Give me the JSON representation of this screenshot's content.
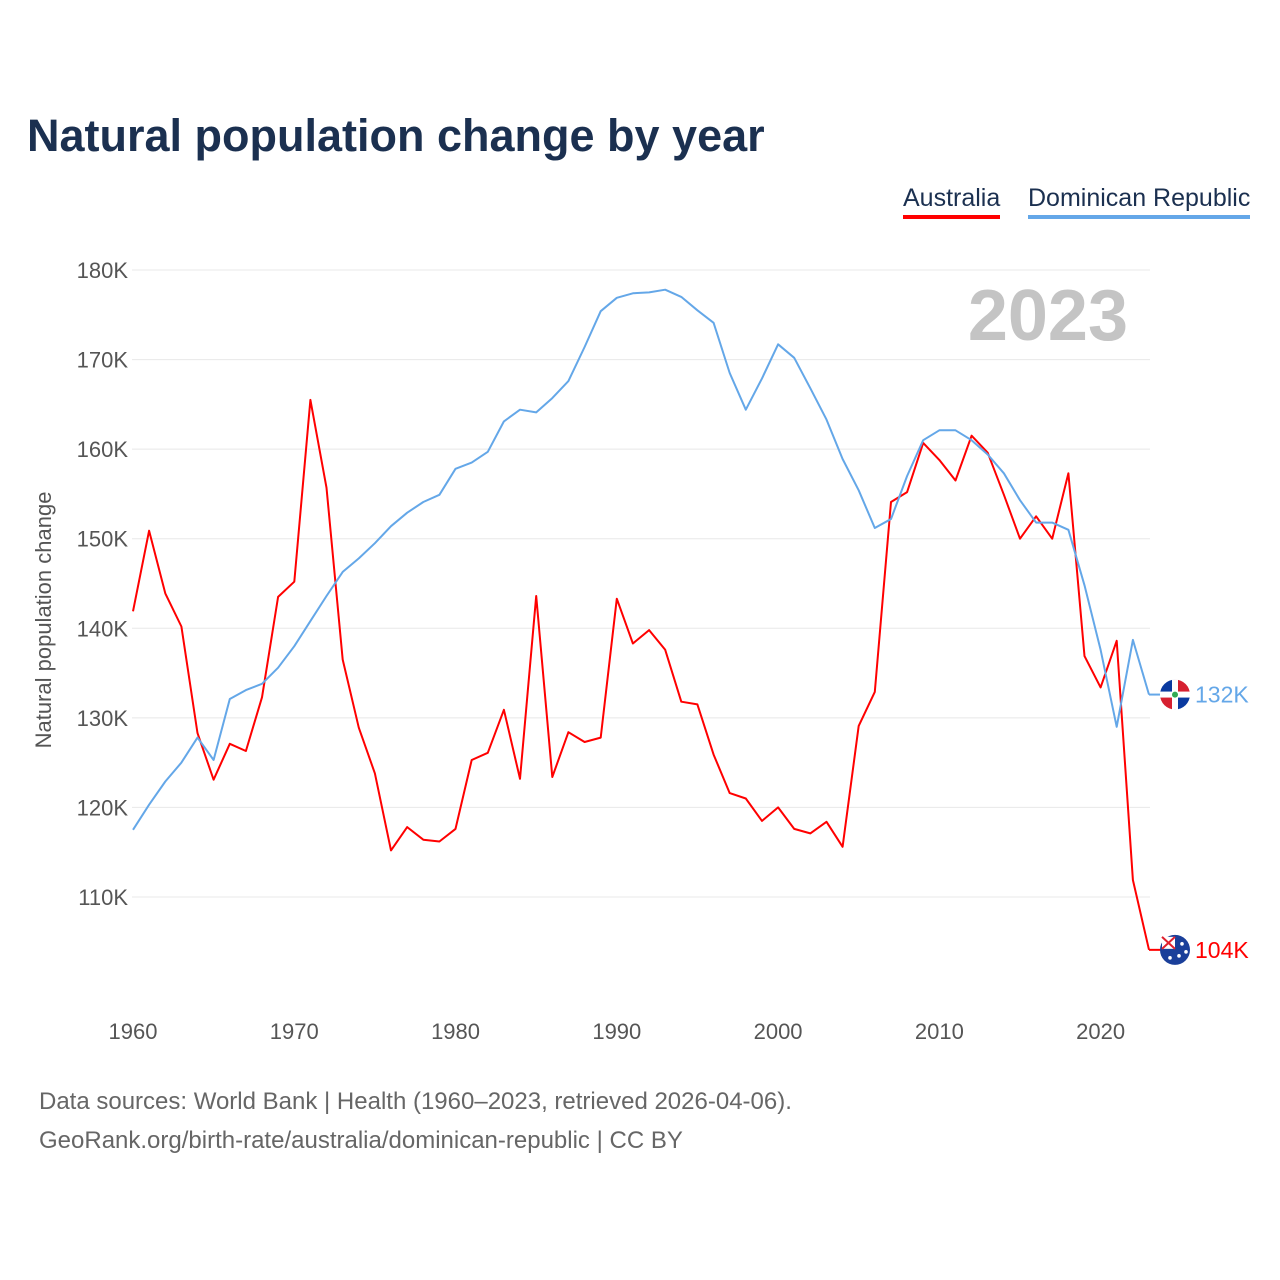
{
  "chart_data": {
    "type": "line",
    "title": "Natural population change by year",
    "xlabel": "",
    "ylabel": "Natural population change",
    "xlim": [
      1960,
      2023
    ],
    "ylim": [
      100000,
      180000
    ],
    "x_ticks": [
      1960,
      1970,
      1980,
      1990,
      2000,
      2010,
      2020
    ],
    "x_tick_labels": [
      "1960",
      "1970",
      "1980",
      "1990",
      "2000",
      "2010",
      "2020"
    ],
    "y_ticks": [
      110000,
      120000,
      130000,
      140000,
      150000,
      160000,
      170000,
      180000
    ],
    "y_tick_labels": [
      "110K",
      "120K",
      "130K",
      "140K",
      "150K",
      "160K",
      "170K",
      "180K"
    ],
    "grid": true,
    "legend_placement": "top-right",
    "year_label": "2023",
    "x": [
      1960,
      1961,
      1962,
      1963,
      1964,
      1965,
      1966,
      1967,
      1968,
      1969,
      1970,
      1971,
      1972,
      1973,
      1974,
      1975,
      1976,
      1977,
      1978,
      1979,
      1980,
      1981,
      1982,
      1983,
      1984,
      1985,
      1986,
      1987,
      1988,
      1989,
      1990,
      1991,
      1992,
      1993,
      1994,
      1995,
      1996,
      1997,
      1998,
      1999,
      2000,
      2001,
      2002,
      2003,
      2004,
      2005,
      2006,
      2007,
      2008,
      2009,
      2010,
      2011,
      2012,
      2013,
      2014,
      2015,
      2016,
      2017,
      2018,
      2019,
      2020,
      2021,
      2022,
      2023
    ],
    "series": [
      {
        "name": "Australia",
        "color": "#ff0000",
        "end_label": "104K",
        "values": [
          141900,
          150900,
          143900,
          140200,
          128300,
          123100,
          127100,
          126300,
          132300,
          143500,
          145200,
          165500,
          155700,
          136500,
          128900,
          123800,
          115200,
          117800,
          116400,
          116200,
          117600,
          125300,
          126100,
          130900,
          123200,
          143600,
          123400,
          128400,
          127300,
          127800,
          143300,
          138300,
          139800,
          137600,
          131800,
          131500,
          125900,
          121600,
          121000,
          118500,
          120000,
          117600,
          117100,
          118400,
          115600,
          129100,
          132900,
          154100,
          155200,
          160700,
          158800,
          156500,
          161500,
          159600,
          154900,
          150000,
          152500,
          150000,
          157300,
          136900,
          133400,
          138600,
          111900,
          104100
        ]
      },
      {
        "name": "Dominican Republic",
        "color": "#64a7e8",
        "end_label": "132K",
        "values": [
          117500,
          120300,
          122900,
          125000,
          127800,
          125300,
          132100,
          133100,
          133800,
          135600,
          138000,
          140800,
          143600,
          146300,
          147800,
          149500,
          151400,
          152900,
          154100,
          154900,
          157800,
          158500,
          159700,
          163100,
          164400,
          164100,
          165700,
          167600,
          171400,
          175400,
          176900,
          177400,
          177500,
          177800,
          177000,
          175500,
          174100,
          168500,
          164400,
          167900,
          171700,
          170200,
          166800,
          163300,
          158900,
          155400,
          151200,
          152200,
          157000,
          161000,
          162100,
          162100,
          161000,
          159400,
          157300,
          154300,
          151800,
          151800,
          151000,
          144800,
          137600,
          129000,
          138700,
          132600
        ]
      }
    ]
  },
  "footer": {
    "source_line": "Data sources: World Bank | Health (1960–2023, retrieved 2026-04-06).",
    "credit_line": "GeoRank.org/birth-rate/australia/dominican-republic | CC BY"
  }
}
